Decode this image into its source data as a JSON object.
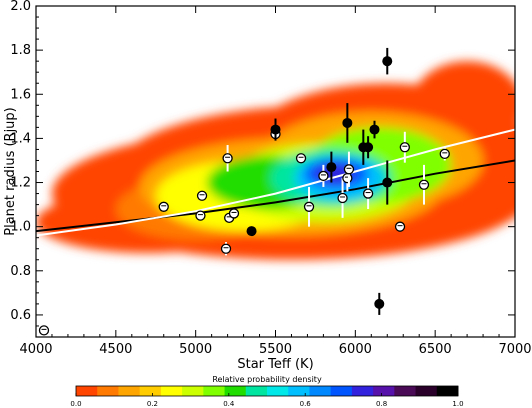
{
  "chart_data": {
    "type": "scatter",
    "xlabel": "Star Teff (K)",
    "ylabel": "Planet radius (Rjup)",
    "xlim": [
      4000,
      7000
    ],
    "ylim": [
      0.5,
      2.0
    ],
    "x_ticks": [
      "4000",
      "4500",
      "5000",
      "5500",
      "6000",
      "6500",
      "7000"
    ],
    "y_ticks": [
      "0.6",
      "0.8",
      "1.0",
      "1.2",
      "1.4",
      "1.6",
      "1.8",
      "2.0"
    ],
    "background": "2D relative probability density map (orange = low, blue/violet = high)",
    "trend_lines": [
      {
        "color": "#000000",
        "points": [
          [
            4000,
            0.98
          ],
          [
            4500,
            1.02
          ],
          [
            5000,
            1.06
          ],
          [
            5500,
            1.11
          ],
          [
            6000,
            1.17
          ],
          [
            6500,
            1.24
          ],
          [
            7000,
            1.3
          ]
        ]
      },
      {
        "color": "#ffffff",
        "points": [
          [
            4000,
            0.96
          ],
          [
            4500,
            1.01
          ],
          [
            5000,
            1.07
          ],
          [
            5500,
            1.15
          ],
          [
            6000,
            1.25
          ],
          [
            6500,
            1.35
          ],
          [
            7000,
            1.44
          ]
        ]
      }
    ],
    "filled_points": [
      {
        "x": 5350,
        "y": 0.98,
        "err": 0.02
      },
      {
        "x": 5500,
        "y": 1.44,
        "err": 0.05
      },
      {
        "x": 5850,
        "y": 1.27,
        "err": 0.07
      },
      {
        "x": 5950,
        "y": 1.47,
        "err": 0.09
      },
      {
        "x": 6050,
        "y": 1.36,
        "err": 0.08
      },
      {
        "x": 6080,
        "y": 1.36,
        "err": 0.05
      },
      {
        "x": 6120,
        "y": 1.44,
        "err": 0.04
      },
      {
        "x": 6150,
        "y": 0.65,
        "err": 0.05
      },
      {
        "x": 6200,
        "y": 1.75,
        "err": 0.06
      },
      {
        "x": 6200,
        "y": 1.2,
        "err": 0.1
      }
    ],
    "labeled_points": [
      {
        "x": 4050,
        "y": 0.53,
        "err": 0.0
      },
      {
        "x": 4800,
        "y": 1.09,
        "err": 0.0
      },
      {
        "x": 5030,
        "y": 1.05,
        "err": 0.0
      },
      {
        "x": 5040,
        "y": 1.14,
        "err": 0.0
      },
      {
        "x": 5190,
        "y": 0.9,
        "err": 0.03
      },
      {
        "x": 5200,
        "y": 1.31,
        "err": 0.06
      },
      {
        "x": 5210,
        "y": 1.04,
        "err": 0.0
      },
      {
        "x": 5240,
        "y": 1.06,
        "err": 0.0
      },
      {
        "x": 5500,
        "y": 1.42,
        "err": 0.0
      },
      {
        "x": 5660,
        "y": 1.31,
        "err": 0.0
      },
      {
        "x": 5710,
        "y": 1.09,
        "err": 0.09
      },
      {
        "x": 5800,
        "y": 1.23,
        "err": 0.05
      },
      {
        "x": 5920,
        "y": 1.13,
        "err": 0.09
      },
      {
        "x": 5950,
        "y": 1.22,
        "err": 0.06
      },
      {
        "x": 5960,
        "y": 1.26,
        "err": 0.08
      },
      {
        "x": 6080,
        "y": 1.15,
        "err": 0.07
      },
      {
        "x": 6280,
        "y": 1.0,
        "err": 0.0
      },
      {
        "x": 6310,
        "y": 1.36,
        "err": 0.07
      },
      {
        "x": 6430,
        "y": 1.19,
        "err": 0.09
      },
      {
        "x": 6560,
        "y": 1.33,
        "err": 0.03
      }
    ],
    "colorbar": {
      "title": "Relative probability density",
      "tick_labels": [
        "0.0",
        "0.2",
        "0.4",
        "0.6",
        "0.8",
        "1.0"
      ],
      "colors": [
        "#ff4500",
        "#ff7a00",
        "#ffa500",
        "#ffcc00",
        "#ffff00",
        "#ccff00",
        "#80ff00",
        "#22dd00",
        "#00e6a0",
        "#00e8e8",
        "#00bfff",
        "#0088ff",
        "#0055ff",
        "#3322dd",
        "#5511aa",
        "#4a0a55",
        "#2a002a",
        "#000000"
      ]
    }
  }
}
